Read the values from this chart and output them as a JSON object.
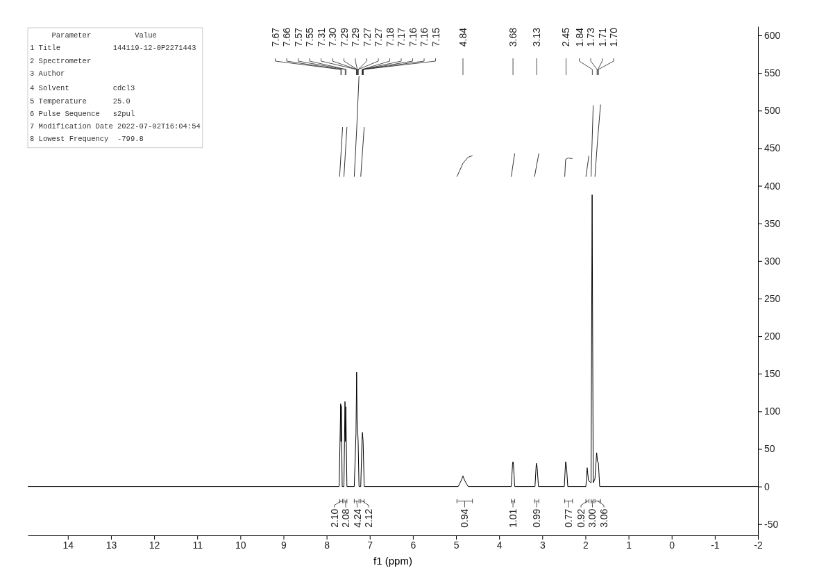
{
  "chart_data": {
    "type": "line",
    "xlabel": "f1 (ppm)",
    "xlim": [
      14.93,
      -2
    ],
    "ylim": [
      -65,
      612
    ],
    "xticks": [
      14,
      13,
      12,
      11,
      10,
      9,
      8,
      7,
      6,
      5,
      4,
      3,
      2,
      1,
      0,
      -1,
      -2
    ],
    "yticks": [
      -50,
      0,
      50,
      100,
      150,
      200,
      250,
      300,
      350,
      400,
      450,
      500,
      550,
      600
    ],
    "grid": false,
    "line_style": "solid",
    "marker": "none",
    "series": [
      {
        "color": "#000000",
        "x": [
          14.93,
          7.71,
          7.675,
          7.668,
          7.66,
          7.64,
          7.6,
          7.575,
          7.565,
          7.555,
          7.53,
          7.36,
          7.32,
          7.305,
          7.295,
          7.285,
          7.27,
          7.25,
          7.21,
          7.18,
          7.17,
          7.155,
          7.13,
          4.95,
          4.88,
          4.84,
          4.8,
          4.72,
          3.72,
          3.69,
          3.68,
          3.67,
          3.64,
          3.17,
          3.14,
          3.12,
          3.09,
          2.49,
          2.46,
          2.45,
          2.44,
          2.41,
          1.99,
          1.96,
          1.93,
          1.87,
          1.845,
          1.82,
          1.78,
          1.74,
          1.72,
          1.7,
          1.67,
          -2
        ],
        "values": [
          0,
          0,
          110,
          60,
          107,
          0,
          0,
          113,
          60,
          106,
          0,
          0,
          70,
          152,
          90,
          80,
          60,
          0,
          0,
          62,
          72,
          60,
          0,
          0,
          8,
          14,
          8,
          0,
          0,
          30,
          33,
          30,
          0,
          0,
          31,
          26,
          0,
          0,
          33,
          30,
          28,
          0,
          0,
          25,
          8,
          5,
          388,
          5,
          10,
          45,
          33,
          32,
          0,
          0
        ]
      },
      {
        "color": "#333333",
        "x": [
          7.7,
          7.665,
          7.63
        ],
        "values": [
          412,
          445,
          478
        ]
      },
      {
        "color": "#333333",
        "x": [
          7.6,
          7.565,
          7.53
        ],
        "values": [
          412,
          445,
          478
        ]
      },
      {
        "color": "#333333",
        "x": [
          7.36,
          7.3,
          7.25
        ],
        "values": [
          412,
          480,
          546
        ]
      },
      {
        "color": "#333333",
        "x": [
          7.21,
          7.17,
          7.13
        ],
        "values": [
          412,
          445,
          478
        ]
      },
      {
        "color": "#333333",
        "x": [
          4.98,
          4.84,
          4.72,
          4.62
        ],
        "values": [
          412,
          430,
          438,
          440
        ]
      },
      {
        "color": "#333333",
        "x": [
          3.72,
          3.68,
          3.64
        ],
        "values": [
          412,
          428,
          443
        ]
      },
      {
        "color": "#333333",
        "x": [
          3.18,
          3.13,
          3.08
        ],
        "values": [
          412,
          428,
          443
        ]
      },
      {
        "color": "#333333",
        "x": [
          2.48,
          2.46,
          2.4,
          2.3
        ],
        "values": [
          412,
          435,
          437,
          436
        ]
      },
      {
        "color": "#333333",
        "x": [
          1.99,
          1.95,
          1.92
        ],
        "values": [
          412,
          428,
          440
        ]
      },
      {
        "color": "#333333",
        "x": [
          1.87,
          1.845,
          1.82
        ],
        "values": [
          412,
          460,
          507
        ]
      },
      {
        "color": "#333333",
        "x": [
          1.78,
          1.72,
          1.65
        ],
        "values": [
          412,
          460,
          508
        ]
      }
    ],
    "annotations": [
      "     Parameter          Value",
      "1 Title            144119-12-0P2271443",
      "2 Spectrometer",
      "3 Author",
      "4 Solvent          cdcl3",
      "5 Temperature      25.0",
      "6 Pulse Sequence   s2pul",
      "7 Modification Date 2022-07-02T16:04:54",
      "8 Lowest Frequency  -799.8",
      {
        "text": "7.67",
        "x": 7.67
      },
      {
        "text": "7.66",
        "x": 7.66
      },
      {
        "text": "7.57",
        "x": 7.57
      },
      {
        "text": "7.55",
        "x": 7.55
      },
      {
        "text": "7.31",
        "x": 7.31
      },
      {
        "text": "7.30",
        "x": 7.3
      },
      {
        "text": "7.29",
        "x": 7.29
      },
      {
        "text": "7.29",
        "x": 7.29
      },
      {
        "text": "7.27",
        "x": 7.27
      },
      {
        "text": "7.27",
        "x": 7.27
      },
      {
        "text": "7.18",
        "x": 7.18
      },
      {
        "text": "7.17",
        "x": 7.17
      },
      {
        "text": "7.16",
        "x": 7.16
      },
      {
        "text": "7.16",
        "x": 7.16
      },
      {
        "text": "7.15",
        "x": 7.15
      },
      {
        "text": "4.84",
        "x": 4.84
      },
      {
        "text": "3.68",
        "x": 3.68
      },
      {
        "text": "3.13",
        "x": 3.13
      },
      {
        "text": "2.45",
        "x": 2.45
      },
      {
        "text": "1.84",
        "x": 1.84
      },
      {
        "text": "1.73",
        "x": 1.73
      },
      {
        "text": "1.71",
        "x": 1.71
      },
      {
        "text": "1.70",
        "x": 1.7
      },
      "2.10",
      "2.08",
      "4.24",
      "2.12",
      "0.94",
      "1.01",
      "0.99",
      "0.77",
      "0.92",
      "3.00",
      "3.06"
    ]
  }
}
